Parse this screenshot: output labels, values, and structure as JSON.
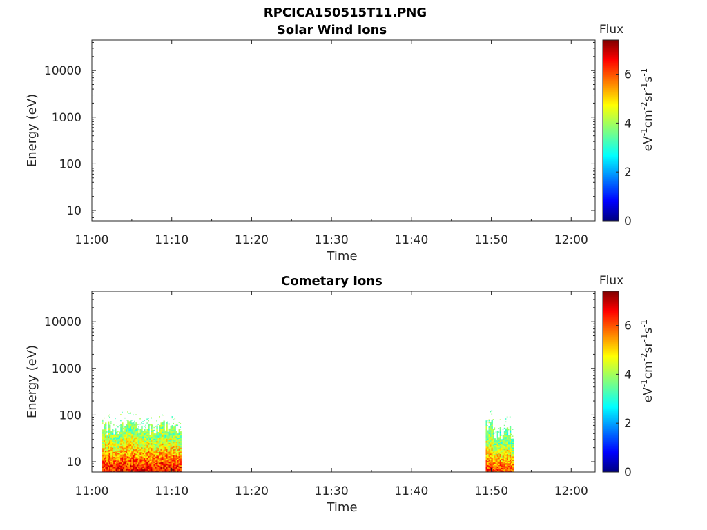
{
  "figure_title": "RPCICA150515T11.PNG",
  "chart_data": [
    {
      "type": "heatmap",
      "title": "Solar Wind Ions",
      "xlabel": "Time",
      "ylabel": "Energy (eV)",
      "x_ticks": [
        "11:00",
        "11:10",
        "11:20",
        "11:30",
        "11:40",
        "11:50",
        "12:00"
      ],
      "x_range_minutes": [
        0,
        63
      ],
      "y_scale": "log",
      "y_ticks": [
        10,
        100,
        1000,
        10000
      ],
      "y_tick_labels": [
        "10",
        "100",
        "1000",
        "10000"
      ],
      "y_range": [
        6,
        45000
      ],
      "colorbar": {
        "title": "Flux",
        "label": "eV-1cm-2sr-1s-1",
        "ticks": [
          0,
          2,
          4,
          6
        ],
        "range": [
          0,
          7.4
        ],
        "colormap": "jet"
      },
      "blocks": []
    },
    {
      "type": "heatmap",
      "title": "Cometary Ions",
      "xlabel": "Time",
      "ylabel": "Energy (eV)",
      "x_ticks": [
        "11:00",
        "11:10",
        "11:20",
        "11:30",
        "11:40",
        "11:50",
        "12:00"
      ],
      "x_range_minutes": [
        0,
        63
      ],
      "y_scale": "log",
      "y_ticks": [
        10,
        100,
        1000,
        10000
      ],
      "y_tick_labels": [
        "10",
        "100",
        "1000",
        "10000"
      ],
      "y_range": [
        6,
        45000
      ],
      "colorbar": {
        "title": "Flux",
        "label": "eV-1cm-2sr-1s-1",
        "ticks": [
          0,
          2,
          4,
          6
        ],
        "range": [
          0,
          7.4
        ],
        "colormap": "jet"
      },
      "blocks": [
        {
          "t_start_min": 1.3,
          "t_end_min": 11.2,
          "e_min_ev": 6,
          "e_max_ev": 80,
          "flux_peak": 7.0
        },
        {
          "t_start_min": 49.3,
          "t_end_min": 52.8,
          "e_min_ev": 6,
          "e_max_ev": 80,
          "flux_peak": 6.5
        }
      ]
    }
  ]
}
